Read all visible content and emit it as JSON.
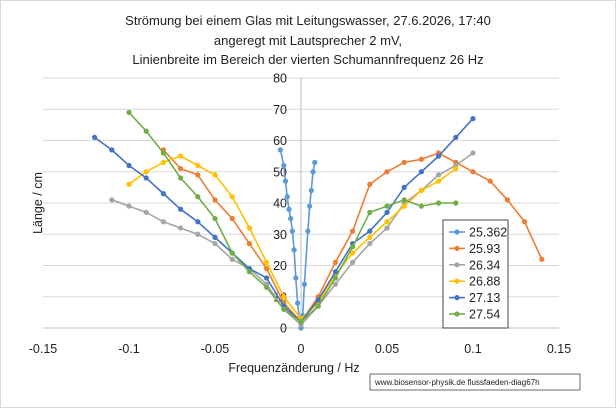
{
  "chart_data": {
    "type": "line",
    "title": [
      "Strömung bei einem Glas mit  Leitungswasser, 27.6.2026, 17:40",
      "angeregt mit Lautsprecher 2 mV,",
      "Linienbreite im Bereich der vierten Schumannfrequenz 26 Hz"
    ],
    "xlabel": "Frequenzänderung / Hz",
    "ylabel": "Länge / cm",
    "xlim": [
      -0.15,
      0.15
    ],
    "ylim": [
      0,
      80
    ],
    "xticks": [
      "-0.15",
      "-0.1",
      "-0.05",
      "0",
      "0.05",
      "0.1",
      "0.15"
    ],
    "yticks": [
      "0",
      "10",
      "20",
      "30",
      "40",
      "50",
      "60",
      "70",
      "80"
    ],
    "grid": "horizontal",
    "legend_position": "right",
    "watermark": "www.biosensor-physik.de  flussfaeden-diag67h",
    "series": [
      {
        "name": "25.362",
        "color": "#5b9bd5",
        "points": [
          [
            -0.012,
            57
          ],
          [
            -0.01,
            52
          ],
          [
            -0.009,
            47
          ],
          [
            -0.008,
            42
          ],
          [
            -0.007,
            38
          ],
          [
            -0.006,
            35
          ],
          [
            -0.005,
            31
          ],
          [
            -0.004,
            25
          ],
          [
            -0.003,
            16
          ],
          [
            -0.002,
            8
          ],
          [
            -0.001,
            3
          ],
          [
            0,
            0
          ],
          [
            0.001,
            4
          ],
          [
            0.002,
            14
          ],
          [
            0.004,
            31
          ],
          [
            0.005,
            39
          ],
          [
            0.006,
            44
          ],
          [
            0.007,
            50
          ],
          [
            0.008,
            53
          ]
        ]
      },
      {
        "name": "25.93",
        "color": "#ed7d31",
        "points": [
          [
            -0.08,
            57
          ],
          [
            -0.07,
            51
          ],
          [
            -0.06,
            49
          ],
          [
            -0.05,
            41
          ],
          [
            -0.04,
            35
          ],
          [
            -0.03,
            27
          ],
          [
            -0.02,
            19
          ],
          [
            -0.01,
            8
          ],
          [
            0,
            2
          ],
          [
            0.01,
            10
          ],
          [
            0.02,
            21
          ],
          [
            0.03,
            31
          ],
          [
            0.04,
            46
          ],
          [
            0.05,
            50
          ],
          [
            0.06,
            53
          ],
          [
            0.07,
            54
          ],
          [
            0.08,
            56
          ],
          [
            0.09,
            53
          ],
          [
            0.1,
            50
          ],
          [
            0.11,
            47
          ],
          [
            0.12,
            41
          ],
          [
            0.13,
            34
          ],
          [
            0.14,
            22
          ]
        ]
      },
      {
        "name": "26.34",
        "color": "#a5a5a5",
        "points": [
          [
            -0.11,
            41
          ],
          [
            -0.1,
            39
          ],
          [
            -0.09,
            37
          ],
          [
            -0.08,
            34
          ],
          [
            -0.07,
            32
          ],
          [
            -0.06,
            30
          ],
          [
            -0.05,
            27
          ],
          [
            -0.04,
            22
          ],
          [
            -0.03,
            19
          ],
          [
            -0.02,
            14
          ],
          [
            -0.01,
            6
          ],
          [
            0,
            1
          ],
          [
            0.01,
            7
          ],
          [
            0.02,
            14
          ],
          [
            0.03,
            21
          ],
          [
            0.04,
            27
          ],
          [
            0.05,
            32
          ],
          [
            0.06,
            40
          ],
          [
            0.07,
            44
          ],
          [
            0.08,
            49
          ],
          [
            0.09,
            52
          ],
          [
            0.1,
            56
          ]
        ]
      },
      {
        "name": "26.88",
        "color": "#ffc000",
        "points": [
          [
            -0.1,
            46
          ],
          [
            -0.09,
            50
          ],
          [
            -0.08,
            53
          ],
          [
            -0.07,
            55
          ],
          [
            -0.06,
            52
          ],
          [
            -0.05,
            49
          ],
          [
            -0.04,
            42
          ],
          [
            -0.03,
            32
          ],
          [
            -0.02,
            21
          ],
          [
            -0.01,
            10
          ],
          [
            0,
            3
          ],
          [
            0.01,
            8
          ],
          [
            0.02,
            17
          ],
          [
            0.03,
            24
          ],
          [
            0.04,
            29
          ],
          [
            0.05,
            34
          ],
          [
            0.06,
            39
          ],
          [
            0.07,
            44
          ],
          [
            0.08,
            47
          ],
          [
            0.09,
            51
          ]
        ]
      },
      {
        "name": "27.13",
        "color": "#4472c4",
        "points": [
          [
            -0.12,
            61
          ],
          [
            -0.11,
            57
          ],
          [
            -0.1,
            52
          ],
          [
            -0.09,
            48
          ],
          [
            -0.08,
            43
          ],
          [
            -0.07,
            38
          ],
          [
            -0.06,
            34
          ],
          [
            -0.05,
            29
          ],
          [
            -0.04,
            24
          ],
          [
            -0.03,
            19
          ],
          [
            -0.02,
            16
          ],
          [
            -0.01,
            7
          ],
          [
            0,
            2
          ],
          [
            0.01,
            9
          ],
          [
            0.02,
            18
          ],
          [
            0.03,
            27
          ],
          [
            0.04,
            31
          ],
          [
            0.05,
            37
          ],
          [
            0.06,
            45
          ],
          [
            0.07,
            50
          ],
          [
            0.08,
            55
          ],
          [
            0.09,
            61
          ],
          [
            0.1,
            67
          ]
        ]
      },
      {
        "name": "27.54",
        "color": "#70ad47",
        "points": [
          [
            -0.1,
            69
          ],
          [
            -0.09,
            63
          ],
          [
            -0.08,
            56
          ],
          [
            -0.07,
            48
          ],
          [
            -0.06,
            42
          ],
          [
            -0.05,
            35
          ],
          [
            -0.04,
            24
          ],
          [
            -0.03,
            18
          ],
          [
            -0.02,
            13
          ],
          [
            -0.01,
            6
          ],
          [
            0,
            2
          ],
          [
            0.01,
            7
          ],
          [
            0.02,
            16
          ],
          [
            0.03,
            26
          ],
          [
            0.04,
            37
          ],
          [
            0.05,
            39
          ],
          [
            0.06,
            41
          ],
          [
            0.07,
            39
          ],
          [
            0.08,
            40
          ],
          [
            0.09,
            40
          ]
        ]
      }
    ]
  }
}
